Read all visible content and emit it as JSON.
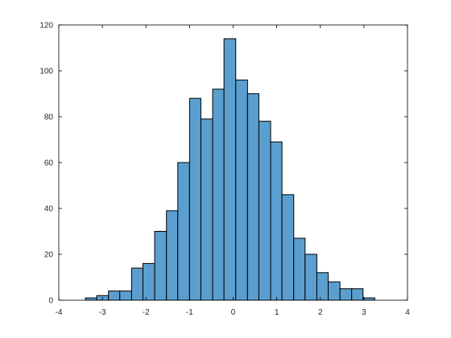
{
  "chart_data": {
    "type": "bar",
    "subtype": "histogram",
    "title": "",
    "xlabel": "",
    "ylabel": "",
    "xlim": [
      -4,
      4
    ],
    "ylim": [
      0,
      120
    ],
    "x_ticks": [
      -4,
      -3,
      -2,
      -1,
      0,
      1,
      2,
      3,
      4
    ],
    "y_ticks": [
      0,
      20,
      40,
      60,
      80,
      100,
      120
    ],
    "x_tick_labels": [
      "-4",
      "-3",
      "-2",
      "-1",
      "0",
      "1",
      "2",
      "3",
      "4"
    ],
    "y_tick_labels": [
      "0",
      "20",
      "40",
      "60",
      "80",
      "100",
      "120"
    ],
    "grid": false,
    "bar_color": "#5b9fd0",
    "edge_color": "#000000",
    "bins": [
      {
        "x0": -3.39,
        "x1": -3.13,
        "count": 1
      },
      {
        "x0": -3.13,
        "x1": -2.86,
        "count": 2
      },
      {
        "x0": -2.86,
        "x1": -2.6,
        "count": 4
      },
      {
        "x0": -2.6,
        "x1": -2.33,
        "count": 4
      },
      {
        "x0": -2.33,
        "x1": -2.07,
        "count": 14
      },
      {
        "x0": -2.07,
        "x1": -1.8,
        "count": 16
      },
      {
        "x0": -1.8,
        "x1": -1.53,
        "count": 30
      },
      {
        "x0": -1.53,
        "x1": -1.27,
        "count": 39
      },
      {
        "x0": -1.27,
        "x1": -1.0,
        "count": 60
      },
      {
        "x0": -1.0,
        "x1": -0.74,
        "count": 88
      },
      {
        "x0": -0.74,
        "x1": -0.47,
        "count": 79
      },
      {
        "x0": -0.47,
        "x1": -0.21,
        "count": 92
      },
      {
        "x0": -0.21,
        "x1": 0.06,
        "count": 114
      },
      {
        "x0": 0.06,
        "x1": 0.33,
        "count": 96
      },
      {
        "x0": 0.33,
        "x1": 0.59,
        "count": 90
      },
      {
        "x0": 0.59,
        "x1": 0.86,
        "count": 78
      },
      {
        "x0": 0.86,
        "x1": 1.12,
        "count": 69
      },
      {
        "x0": 1.12,
        "x1": 1.39,
        "count": 46
      },
      {
        "x0": 1.39,
        "x1": 1.65,
        "count": 27
      },
      {
        "x0": 1.65,
        "x1": 1.92,
        "count": 20
      },
      {
        "x0": 1.92,
        "x1": 2.18,
        "count": 12
      },
      {
        "x0": 2.18,
        "x1": 2.45,
        "count": 8
      },
      {
        "x0": 2.45,
        "x1": 2.72,
        "count": 5
      },
      {
        "x0": 2.72,
        "x1": 2.98,
        "count": 5
      },
      {
        "x0": 2.98,
        "x1": 3.25,
        "count": 1
      }
    ]
  }
}
